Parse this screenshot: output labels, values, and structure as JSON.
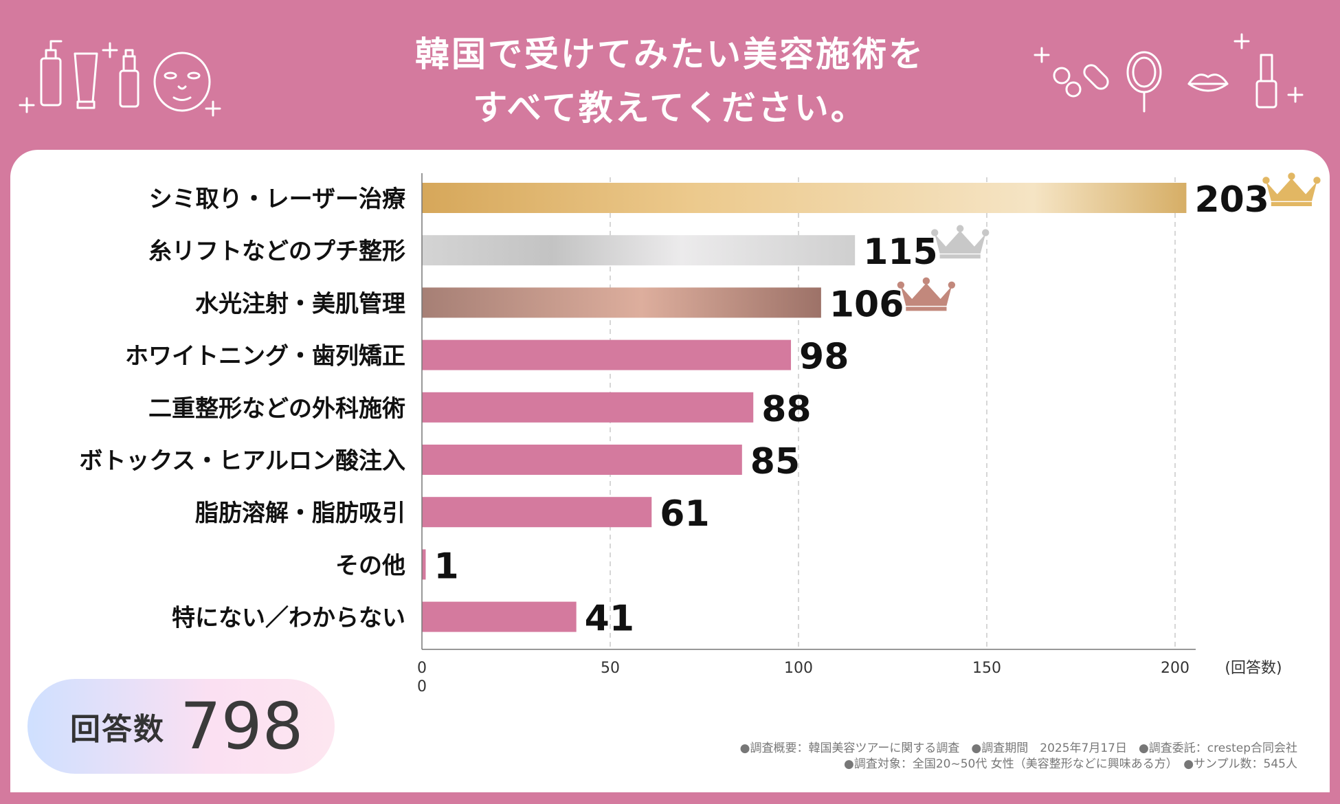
{
  "header": {
    "title_line1": "韓国で受けてみたい美容施術を",
    "title_line2": "すべて教えてください。"
  },
  "colors": {
    "background": "#d47a9e",
    "bar_default": "#d47a9e",
    "gold": "#e2b763",
    "silver": "#c8c8c8",
    "bronze": "#c2887c"
  },
  "chart_data": {
    "type": "bar",
    "orientation": "horizontal",
    "categories": [
      "シミ取り・レーザー治療",
      "糸リフトなどのプチ整形",
      "水光注射・美肌管理",
      "ホワイトニング・歯列矯正",
      "二重整形などの外科施術",
      "ボトックス・ヒアルロン酸注入",
      "脂肪溶解・脂肪吸引",
      "その他",
      "特にない／わからない"
    ],
    "values": [
      203,
      115,
      106,
      98,
      88,
      85,
      61,
      1,
      41
    ],
    "rank_badges": [
      "gold-crown",
      "silver-crown",
      "bronze-crown"
    ],
    "xlim": [
      0,
      200
    ],
    "x_ticks": [
      0,
      50,
      100,
      150,
      200
    ],
    "x_tick_extra": "0",
    "xlabel": "(回答数)",
    "grid": "vertical-dashed"
  },
  "summary": {
    "count_label": "回答数",
    "count_value": "798"
  },
  "footnotes": {
    "line1": "●調査概要：韓国美容ツアーに関する調査　●調査期間　2025年7月17日　●調査委託：crestep合同会社",
    "line2": "●調査対象：全国20~50代 女性（美容整形などに興味ある方）　●サンプル数：545人"
  }
}
